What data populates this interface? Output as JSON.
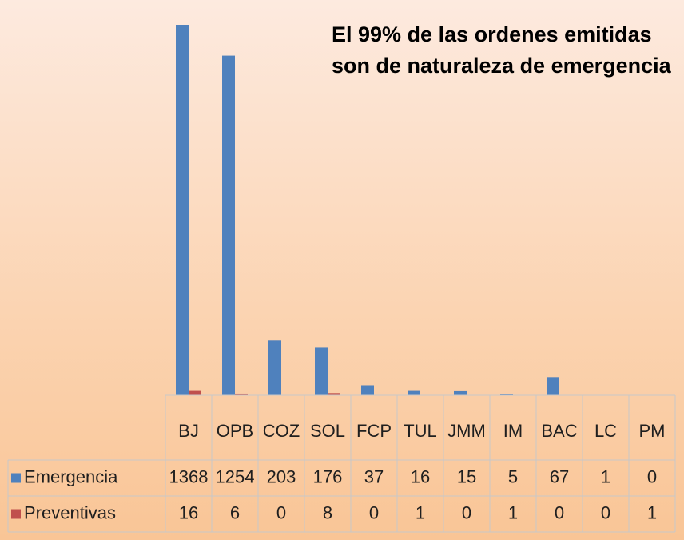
{
  "chart_data": {
    "type": "bar",
    "title": "El 99% de las ordenes emitidas son de naturaleza de emergencia",
    "categories": [
      "BJ",
      "OPB",
      "COZ",
      "SOL",
      "FCP",
      "TUL",
      "JMM",
      "IM",
      "BAC",
      "LC",
      "PM"
    ],
    "series": [
      {
        "name": "Emergencia",
        "color": "#4f81bd",
        "values": [
          1368,
          1254,
          203,
          176,
          37,
          16,
          15,
          5,
          67,
          1,
          0
        ]
      },
      {
        "name": "Preventivas",
        "color": "#c0504d",
        "values": [
          16,
          6,
          0,
          8,
          0,
          1,
          0,
          1,
          0,
          0,
          1
        ]
      }
    ]
  }
}
